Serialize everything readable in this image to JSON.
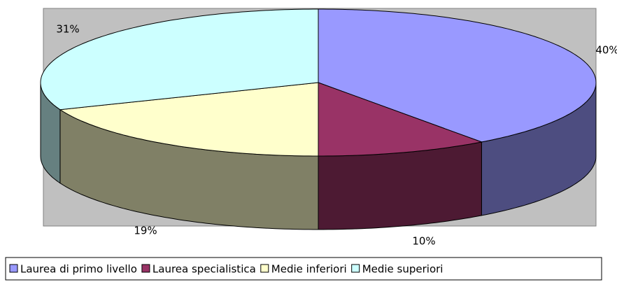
{
  "chart_data": {
    "type": "pie3d",
    "categories": [
      "Laurea di primo livello",
      "Laurea specialistica",
      "Medie inferiori",
      "Medie superiori"
    ],
    "values": [
      40,
      10,
      19,
      31
    ],
    "value_labels": [
      "40%",
      "10%",
      "19%",
      "31%"
    ],
    "colors": [
      "#9999ff",
      "#993366",
      "#ffffcc",
      "#ccffff"
    ],
    "side_colors": [
      "#4d4d80",
      "#4d1a33",
      "#808066",
      "#668080"
    ],
    "legend": "bottom"
  }
}
